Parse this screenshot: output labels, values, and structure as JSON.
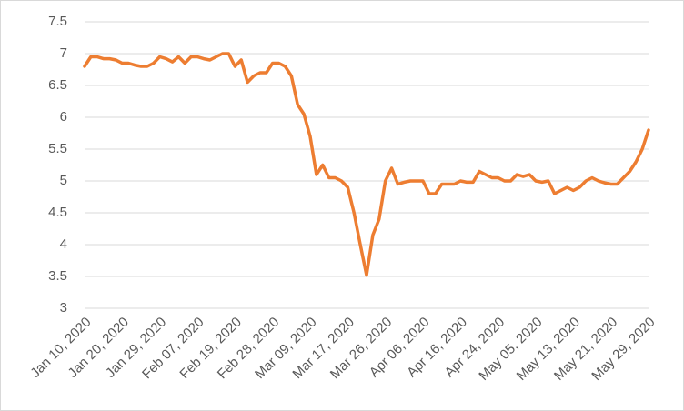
{
  "chart_data": {
    "type": "line",
    "categories": [
      "Jan 10, 2020",
      null,
      null,
      null,
      null,
      null,
      "Jan 20, 2020",
      null,
      null,
      null,
      null,
      null,
      "Jan 29, 2020",
      null,
      null,
      null,
      null,
      null,
      "Feb 07, 2020",
      null,
      null,
      null,
      null,
      null,
      "Feb 19, 2020",
      null,
      null,
      null,
      null,
      null,
      "Feb 28, 2020",
      null,
      null,
      null,
      null,
      null,
      "Mar 09, 2020",
      null,
      null,
      null,
      null,
      null,
      "Mar 17, 2020",
      null,
      null,
      null,
      null,
      null,
      "Mar 26, 2020",
      null,
      null,
      null,
      null,
      null,
      "Apr 06, 2020",
      null,
      null,
      null,
      null,
      null,
      "Apr 16, 2020",
      null,
      null,
      null,
      null,
      null,
      "Apr 24, 2020",
      null,
      null,
      null,
      null,
      null,
      "May 05, 2020",
      null,
      null,
      null,
      null,
      null,
      "May 13, 2020",
      null,
      null,
      null,
      null,
      null,
      "May 21, 2020",
      null,
      null,
      null,
      null,
      null,
      "May 29, 2020"
    ],
    "values": [
      6.8,
      6.95,
      6.95,
      6.92,
      6.92,
      6.9,
      6.85,
      6.85,
      6.82,
      6.8,
      6.8,
      6.85,
      6.95,
      6.92,
      6.87,
      6.95,
      6.85,
      6.95,
      6.95,
      6.92,
      6.9,
      6.95,
      7.0,
      7.0,
      6.8,
      6.9,
      6.55,
      6.65,
      6.7,
      6.7,
      6.85,
      6.85,
      6.8,
      6.65,
      6.2,
      6.05,
      5.7,
      5.1,
      5.25,
      5.05,
      5.05,
      5.0,
      4.9,
      4.5,
      4.0,
      3.52,
      4.15,
      4.4,
      5.0,
      5.2,
      4.95,
      4.98,
      5.0,
      5.0,
      5.0,
      4.8,
      4.8,
      4.95,
      4.95,
      4.95,
      5.0,
      4.98,
      4.98,
      5.15,
      5.1,
      5.05,
      5.05,
      5.0,
      5.0,
      5.1,
      5.07,
      5.1,
      5.0,
      4.98,
      5.0,
      4.8,
      4.85,
      4.9,
      4.85,
      4.9,
      5.0,
      5.05,
      5.0,
      4.97,
      4.95,
      4.95,
      5.05,
      5.15,
      5.3,
      5.5,
      5.8
    ],
    "color": "#ed7d31",
    "ylim": [
      3,
      7.5
    ],
    "yticks": [
      3,
      3.5,
      4,
      4.5,
      5,
      5.5,
      6,
      6.5,
      7,
      7.5
    ],
    "grid": true
  }
}
